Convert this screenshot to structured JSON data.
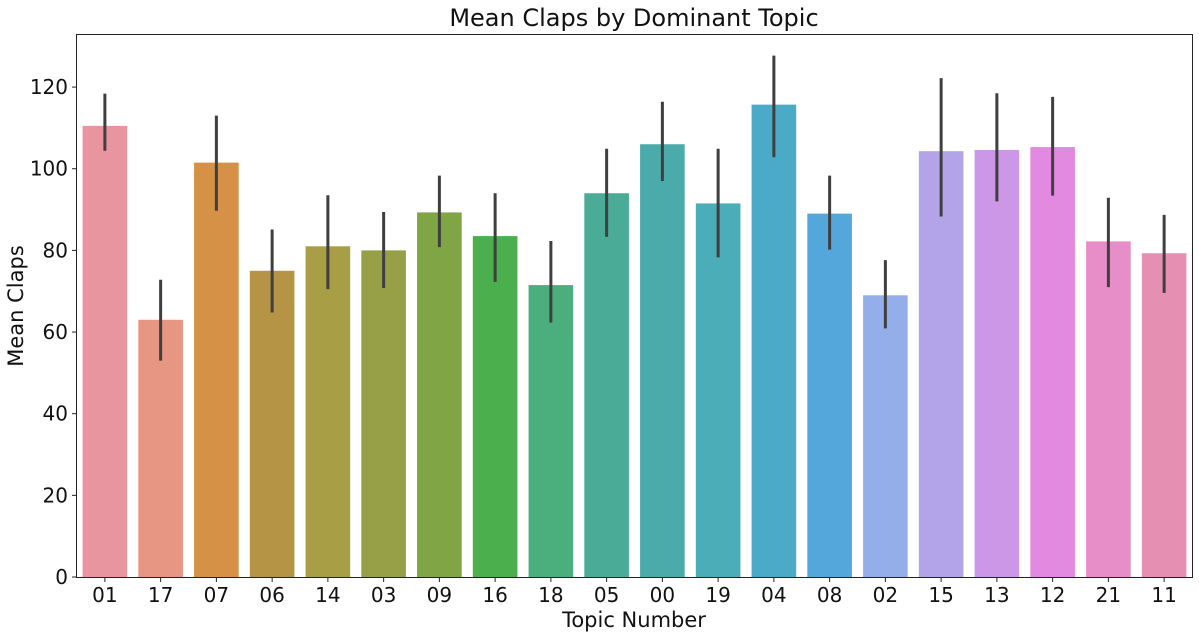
{
  "chart_data": {
    "type": "bar",
    "title": "Mean Claps by Dominant Topic",
    "xlabel": "Topic Number",
    "ylabel": "Mean Claps",
    "ylim": [
      0,
      133
    ],
    "yticks": [
      0,
      20,
      40,
      60,
      80,
      100,
      120
    ],
    "grid": false,
    "legend": "none",
    "categories": [
      "01",
      "17",
      "07",
      "06",
      "14",
      "03",
      "09",
      "16",
      "18",
      "05",
      "00",
      "19",
      "04",
      "08",
      "02",
      "15",
      "13",
      "12",
      "21",
      "11"
    ],
    "values": [
      110.5,
      63,
      101.5,
      75,
      81,
      80,
      89.3,
      83.5,
      71.5,
      94,
      106,
      91.5,
      115.7,
      89,
      69,
      104.3,
      104.6,
      105.3,
      82.2,
      79.3
    ],
    "error_low": [
      104.4,
      53,
      89.7,
      64.8,
      70.5,
      70.8,
      80.8,
      72.3,
      62.3,
      83.3,
      97,
      78.3,
      102.8,
      80.2,
      60.9,
      88.3,
      92,
      93.4,
      71,
      69.6
    ],
    "error_high": [
      118.4,
      72.8,
      113,
      85.1,
      93.5,
      89.4,
      98.3,
      94,
      82.3,
      104.9,
      116.4,
      104.9,
      127.7,
      98.3,
      77.6,
      122.2,
      118.5,
      117.6,
      92.9,
      88.7
    ],
    "colors": [
      "#e8959f",
      "#e69683",
      "#d59145",
      "#b59446",
      "#a89e45",
      "#98a047",
      "#7fa545",
      "#4aaf4c",
      "#4aae7d",
      "#4aab97",
      "#4babaa",
      "#4badb7",
      "#4baac7",
      "#54a7db",
      "#93aee8",
      "#b3a4ea",
      "#cb97e6",
      "#e289e0",
      "#e78ec8",
      "#e590b3"
    ],
    "errorbar_color": "#3f3f3f"
  }
}
